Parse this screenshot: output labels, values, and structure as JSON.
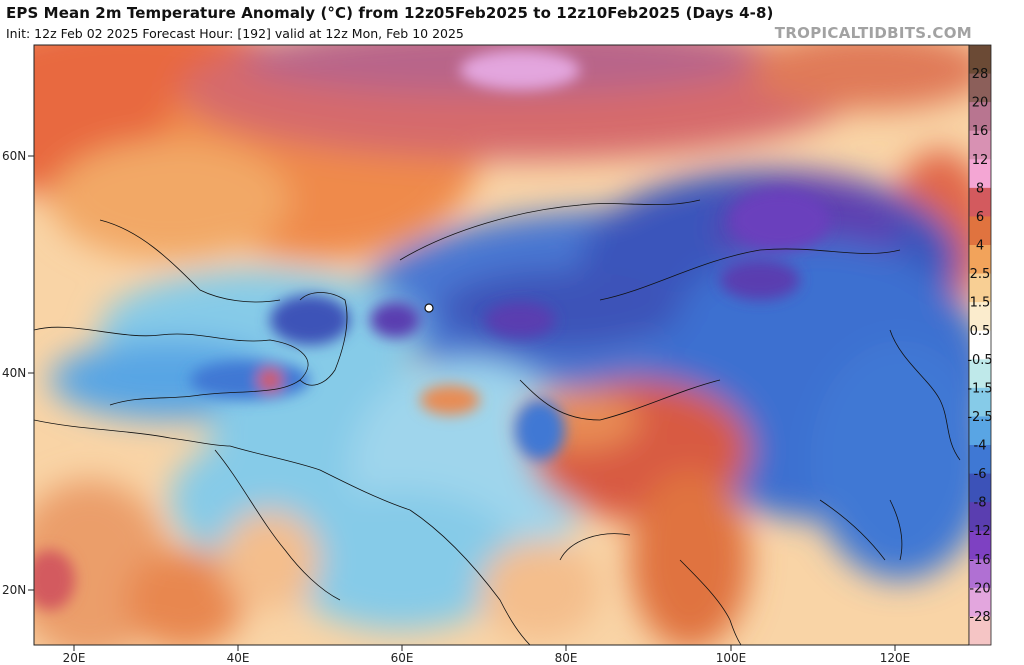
{
  "header": {
    "title": "EPS Mean 2m Temperature Anomaly (°C) from 12z05Feb2025 to 12z10Feb2025 (Days 4-8)",
    "subtitle": "Init: 12z Feb 02 2025   Forecast Hour: [192]   valid at 12z Mon, Feb 10 2025",
    "brand": "TROPICALTIDBITS.COM"
  },
  "map": {
    "lat_labels": [
      "60N",
      "40N",
      "20N"
    ],
    "lon_labels": [
      "20E",
      "40E",
      "60E",
      "80E",
      "100E",
      "120E"
    ]
  },
  "colorbar": {
    "labels": [
      "28",
      "20",
      "16",
      "12",
      "8",
      "6",
      "4",
      "2.5",
      "1.5",
      "0.5",
      "-0.5",
      "-1.5",
      "-2.5",
      "-4",
      "-6",
      "-8",
      "-12",
      "-16",
      "-20",
      "-28"
    ],
    "colors": [
      "#6b4a35",
      "#8c5f5a",
      "#b87590",
      "#d891b3",
      "#f4a6d4",
      "#d35a5e",
      "#e0733f",
      "#f2a35b",
      "#f8cf94",
      "#fbeccd",
      "#ffffff",
      "#bfe9ea",
      "#86cbe8",
      "#59a5e4",
      "#3f78d4",
      "#3c52b8",
      "#5a3eb0",
      "#7e41c2",
      "#b070d3",
      "#e3a6de",
      "#f5c5c5"
    ]
  }
}
